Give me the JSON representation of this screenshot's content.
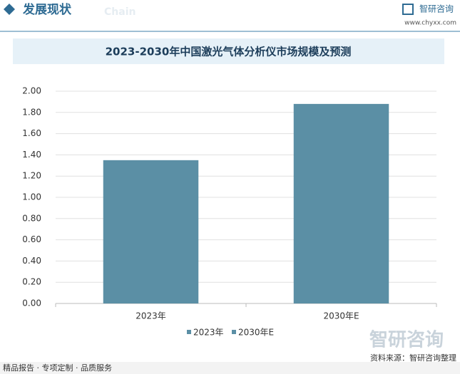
{
  "header": {
    "title": "发展现状",
    "subtitle": "Chain",
    "brand": "智研咨询",
    "url": "www.chyxx.com"
  },
  "chart_data": {
    "type": "bar",
    "title": "2023-2030年中国激光气体分析仪市场规模及预测",
    "categories": [
      "2023年",
      "2030年E"
    ],
    "values": [
      1.35,
      1.88
    ],
    "color": "#5b8fa5",
    "ylim": [
      0,
      2
    ],
    "yticks": [
      {
        "value": 0,
        "label": "0.00"
      },
      {
        "value": 0.2,
        "label": "0.20"
      },
      {
        "value": 0.4,
        "label": "0.40"
      },
      {
        "value": 0.6,
        "label": "0.60"
      },
      {
        "value": 0.8,
        "label": "0.80"
      },
      {
        "value": 1,
        "label": "1.00"
      },
      {
        "value": 1.2,
        "label": "1.20"
      },
      {
        "value": 1.4,
        "label": "1.40"
      },
      {
        "value": 1.6,
        "label": "1.60"
      },
      {
        "value": 1.8,
        "label": "1.80"
      },
      {
        "value": 2,
        "label": "2.00"
      }
    ],
    "grid": true
  },
  "footer": {
    "slogan": "精品报告 · 专项定制 · 品质服务",
    "source": "资料来源：智研咨询整理"
  }
}
